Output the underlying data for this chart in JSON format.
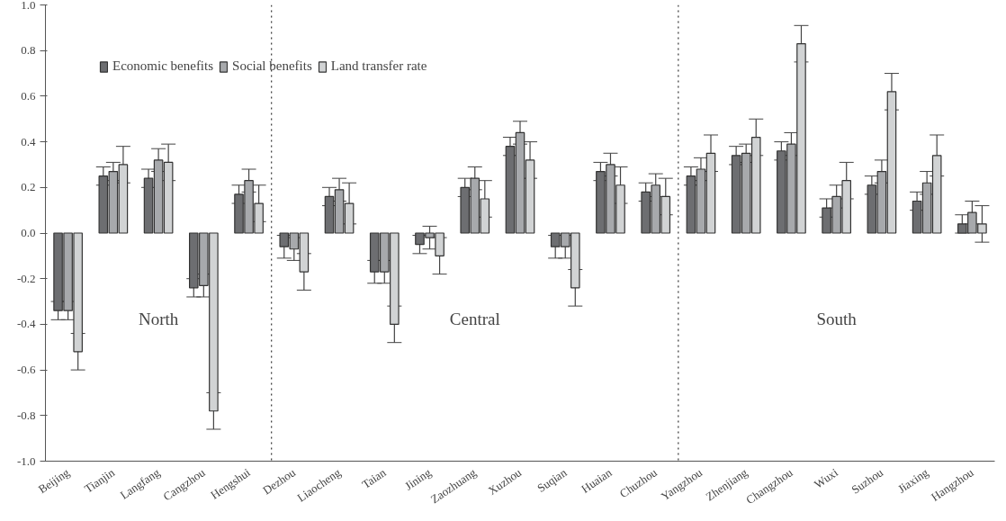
{
  "chart_data": {
    "type": "bar",
    "categories": [
      "Beijing",
      "Tianjin",
      "Langfang",
      "Cangzhou",
      "Hengshui",
      "Dezhou",
      "Liaocheng",
      "Taian",
      "Jining",
      "Zaozhuang",
      "Xuzhou",
      "Suqian",
      "Huaian",
      "Chuzhou",
      "Yangzhou",
      "Zhenjiang",
      "Changzhou",
      "Wuxi",
      "Suzhou",
      "Jiaxing",
      "Hangzhou"
    ],
    "series": [
      {
        "name": "Economic benefits",
        "color": "#6d6e71",
        "values": [
          -0.34,
          0.25,
          0.24,
          -0.24,
          0.17,
          -0.06,
          0.16,
          -0.17,
          -0.05,
          0.2,
          0.38,
          -0.06,
          0.27,
          0.18,
          0.25,
          0.34,
          0.36,
          0.11,
          0.21,
          0.14,
          0.04
        ],
        "errors": [
          0.04,
          0.04,
          0.04,
          0.04,
          0.04,
          0.05,
          0.04,
          0.05,
          0.04,
          0.04,
          0.04,
          0.05,
          0.04,
          0.04,
          0.04,
          0.04,
          0.04,
          0.04,
          0.04,
          0.04,
          0.04
        ]
      },
      {
        "name": "Social benefits",
        "color": "#a7a9ac",
        "values": [
          -0.34,
          0.27,
          0.32,
          -0.23,
          0.23,
          -0.07,
          0.19,
          -0.17,
          -0.02,
          0.24,
          0.44,
          -0.06,
          0.3,
          0.21,
          0.28,
          0.35,
          0.39,
          0.16,
          0.27,
          0.22,
          0.09
        ],
        "errors": [
          0.04,
          0.04,
          0.05,
          0.05,
          0.05,
          0.05,
          0.05,
          0.05,
          0.05,
          0.05,
          0.05,
          0.05,
          0.05,
          0.05,
          0.05,
          0.04,
          0.05,
          0.05,
          0.05,
          0.05,
          0.05
        ]
      },
      {
        "name": "Land transfer rate",
        "color": "#d1d3d4",
        "values": [
          -0.52,
          0.3,
          0.31,
          -0.78,
          0.13,
          -0.17,
          0.13,
          -0.4,
          -0.1,
          0.15,
          0.32,
          -0.24,
          0.21,
          0.16,
          0.35,
          0.42,
          0.83,
          0.23,
          0.62,
          0.34,
          0.04
        ],
        "errors": [
          0.08,
          0.08,
          0.08,
          0.08,
          0.08,
          0.08,
          0.09,
          0.08,
          0.08,
          0.08,
          0.08,
          0.08,
          0.08,
          0.08,
          0.08,
          0.08,
          0.08,
          0.08,
          0.08,
          0.09,
          0.08
        ]
      }
    ],
    "ylim": [
      -1.0,
      1.0
    ],
    "yticks": [
      {
        "value": -1.0,
        "label": "-1.0"
      },
      {
        "value": -0.8,
        "label": "-0.8"
      },
      {
        "value": -0.6,
        "label": "-0.6"
      },
      {
        "value": -0.4,
        "label": "-0.4"
      },
      {
        "value": -0.2,
        "label": "-0.2"
      },
      {
        "value": 0,
        "label": "0.0"
      },
      {
        "value": 0.2,
        "label": "0.2"
      },
      {
        "value": 0.4,
        "label": "0.4"
      },
      {
        "value": 0.6,
        "label": "0.6"
      },
      {
        "value": 0.8,
        "label": "0.8"
      },
      {
        "value": 1.0,
        "label": "1.0"
      }
    ],
    "annotations": [
      "North",
      "Central",
      "South"
    ],
    "legend": "top left",
    "grid": false
  }
}
